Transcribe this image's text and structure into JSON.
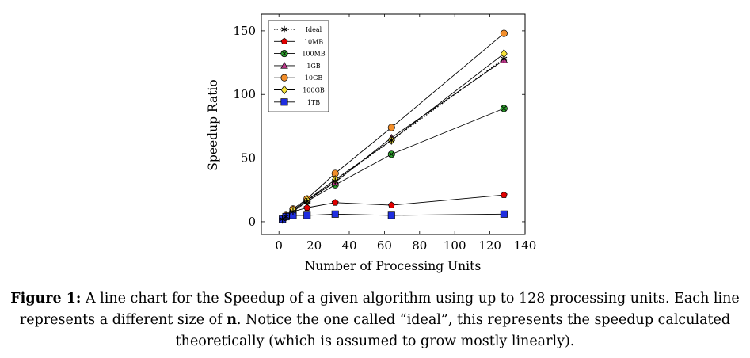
{
  "chart_data": {
    "type": "line",
    "xlabel": "Number of Processing Units",
    "ylabel": "Speedup Ratio",
    "xlim": [
      -10,
      140
    ],
    "ylim": [
      -10,
      163
    ],
    "xticks": [
      0,
      20,
      40,
      60,
      80,
      100,
      120,
      140
    ],
    "yticks": [
      0,
      50,
      100,
      150
    ],
    "legend_position": "top-left",
    "x": [
      2,
      4,
      8,
      16,
      32,
      64,
      128
    ],
    "series": [
      {
        "name": "Ideal",
        "marker": "star",
        "line": "dotted",
        "color": "#000000",
        "values": [
          2,
          4,
          8,
          16,
          32,
          64,
          128
        ]
      },
      {
        "name": "10MB",
        "marker": "pentagon",
        "line": "solid",
        "color": "#e00000",
        "values": [
          2,
          4,
          8,
          11,
          15,
          13,
          21
        ]
      },
      {
        "name": "100MB",
        "marker": "otimes",
        "line": "solid",
        "color": "#2ea02e",
        "values": [
          2,
          4,
          8,
          16,
          29,
          53,
          89
        ]
      },
      {
        "name": "1GB",
        "marker": "triangle",
        "line": "solid",
        "color": "#c03a8e",
        "values": [
          2,
          4,
          9,
          17,
          31,
          66,
          127
        ]
      },
      {
        "name": "10GB",
        "marker": "circle",
        "line": "solid",
        "color": "#f28e2b",
        "values": [
          2,
          5,
          10,
          18,
          38,
          74,
          148
        ]
      },
      {
        "name": "100GB",
        "marker": "diamond",
        "line": "solid",
        "color": "#f7e43a",
        "values": [
          2,
          4,
          9,
          17,
          33,
          64,
          132
        ]
      },
      {
        "name": "1TB",
        "marker": "square",
        "line": "solid",
        "color": "#1f2ee0",
        "values": [
          2,
          4,
          5,
          5,
          6,
          5,
          6
        ]
      }
    ]
  },
  "caption": {
    "label": "Figure 1:",
    "text_1": " A line chart for the Speedup of a given algorithm using up to 128 processing units. Each line represents a different size of ",
    "bold_n": "n",
    "text_2": ". Notice the one called “ideal”, this represents the speedup calculated theoretically (which is assumed to grow mostly linearly)."
  }
}
